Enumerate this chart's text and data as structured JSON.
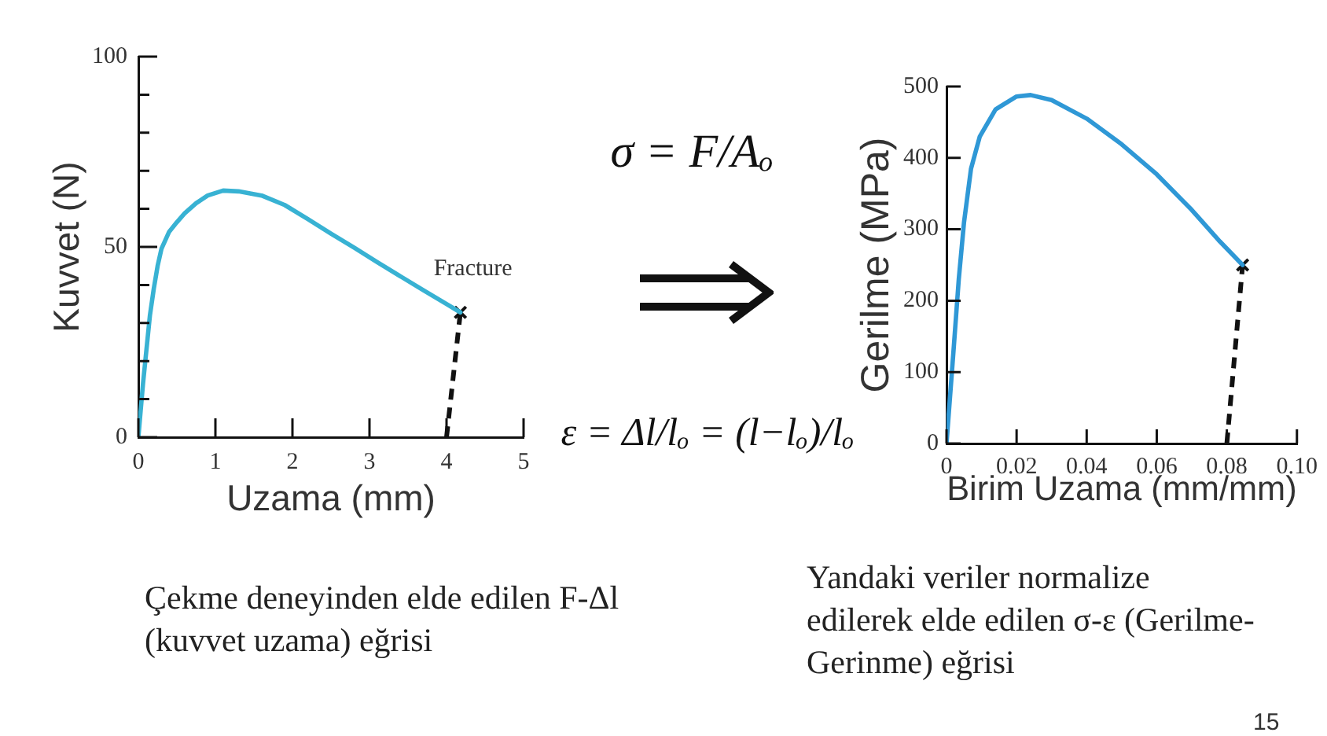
{
  "chart_data": [
    {
      "type": "line",
      "xlabel": "Uzama (mm)",
      "ylabel": "Kuvvet (N)",
      "xlim": [
        0,
        5
      ],
      "ylim": [
        0,
        100
      ],
      "xticks": [
        0,
        1,
        2,
        3,
        4,
        5
      ],
      "yticks": [
        0,
        {
          "value": 10,
          "label": null
        },
        {
          "value": 20,
          "label": null
        },
        {
          "value": 30,
          "label": null
        },
        {
          "value": 40,
          "label": null
        },
        50,
        {
          "value": 60,
          "label": null
        },
        {
          "value": 70,
          "label": null
        },
        {
          "value": 80,
          "label": null
        },
        {
          "value": 90,
          "label": null
        },
        100
      ],
      "marker": "none",
      "series": [
        {
          "color": "#38b2d3",
          "x": [
            0,
            0.03,
            0.06,
            0.1,
            0.15,
            0.2,
            0.25,
            0.3,
            0.4,
            0.5,
            0.6,
            0.75,
            0.9,
            1.1,
            1.3,
            1.6,
            1.9,
            2.2,
            2.5,
            2.8,
            3.1,
            3.4,
            3.7,
            4.0,
            4.18
          ],
          "values": [
            0,
            7,
            14,
            22,
            32,
            39,
            45,
            49.5,
            54,
            56.5,
            58.8,
            61.5,
            63.5,
            64.8,
            64.6,
            63.5,
            61,
            57.3,
            53.5,
            49.8,
            46,
            42.3,
            38.6,
            35,
            32.8
          ]
        },
        {
          "color": "#111111",
          "line_style": "dashed",
          "x": [
            4.0,
            4.18
          ],
          "values": [
            0,
            32.8
          ]
        },
        {
          "type": "scatter",
          "marker": "cross",
          "color": "#111111",
          "x": [
            4.18
          ],
          "values": [
            32.8
          ]
        }
      ],
      "annotations": [
        {
          "text": "Fracture",
          "x": 4.18,
          "y": 32.8
        },
        "Çekme deneyinden elde edilen F-Δl (kuvvet uzama) eğrisi"
      ]
    },
    {
      "type": "other",
      "annotations": [
        "σ = F/Aₒ",
        "ε = Δl/lₒ = (l−lₒ)/lₒ"
      ]
    },
    {
      "type": "line",
      "xlabel": "Birim Uzama (mm/mm)",
      "ylabel": "Gerilme (MPa)",
      "xlim": [
        0,
        0.1
      ],
      "ylim": [
        0,
        500
      ],
      "xticks": [
        0,
        0.02,
        0.04,
        0.06,
        0.08,
        {
          "value": 0.1,
          "label": "0.10"
        }
      ],
      "yticks": [
        0,
        100,
        200,
        300,
        400,
        500
      ],
      "marker": "none",
      "series": [
        {
          "color": "#2f98d6",
          "x": [
            0,
            0.002,
            0.0035,
            0.005,
            0.007,
            0.0095,
            0.014,
            0.02,
            0.024,
            0.03,
            0.04,
            0.05,
            0.06,
            0.07,
            0.078,
            0.0845
          ],
          "values": [
            0,
            130,
            230,
            310,
            385,
            430,
            468,
            486,
            488,
            481,
            455,
            419,
            377,
            327,
            283,
            250
          ]
        },
        {
          "color": "#111111",
          "line_style": "dashed",
          "x": [
            0.08,
            0.0845
          ],
          "values": [
            0,
            250
          ]
        },
        {
          "type": "scatter",
          "marker": "cross",
          "color": "#111111",
          "x": [
            0.0845
          ],
          "values": [
            250
          ]
        }
      ],
      "annotations": [
        "Yandaki veriler normalize\nedilerek elde edilen σ-ε (Gerilme-Gerinme) eğrisi",
        "15"
      ]
    }
  ]
}
